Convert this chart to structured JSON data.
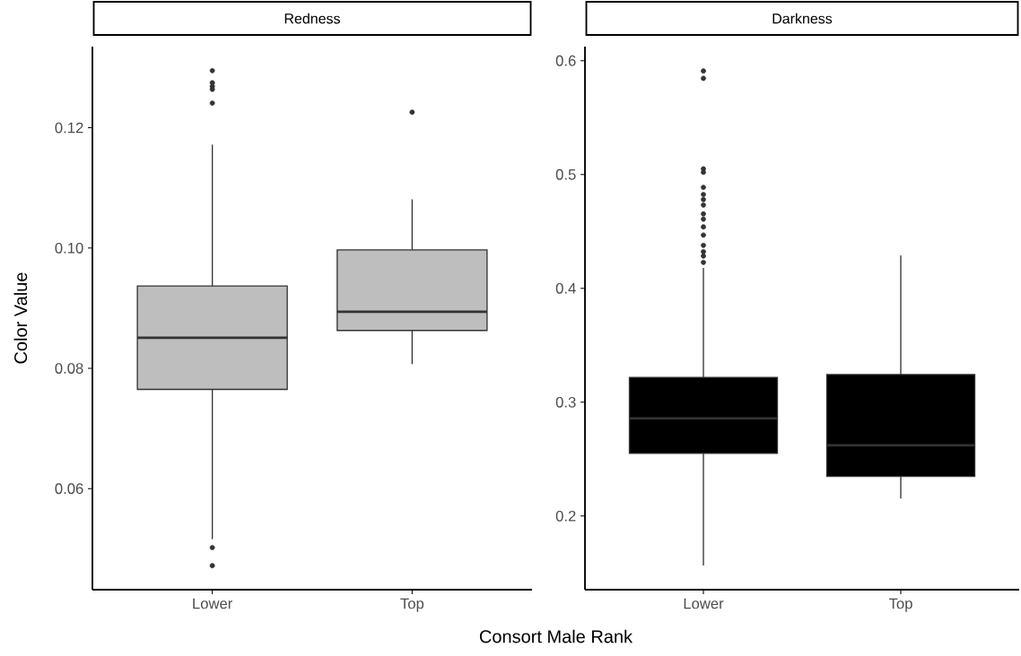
{
  "chart_data": [
    {
      "type": "box",
      "title": "Redness",
      "ylabel": "Color Value",
      "xlabel": "Consort Male Rank",
      "categories": [
        "Lower",
        "Top"
      ],
      "color": "#bebebe",
      "marker": "circle",
      "boxes": [
        {
          "low": 0.0516,
          "q1": 0.0765,
          "median": 0.0851,
          "q3": 0.0937,
          "high": 0.1172,
          "outliers": [
            0.1295,
            0.1275,
            0.1269,
            0.1264,
            0.1241,
            0.0502,
            0.0472
          ]
        },
        {
          "low": 0.0807,
          "q1": 0.0863,
          "median": 0.0894,
          "q3": 0.0997,
          "high": 0.1081,
          "outliers": [
            0.1226
          ]
        }
      ],
      "ylim": [
        0.0432,
        0.1335
      ],
      "yticks": [
        0.06,
        0.08,
        {
          "value": 0.1,
          "label": "0.10"
        },
        0.12
      ]
    },
    {
      "type": "box",
      "title": "Darkness",
      "categories": [
        "Lower",
        "Top"
      ],
      "color": "#000000",
      "marker": "circle",
      "boxes": [
        {
          "low": 0.1565,
          "q1": 0.255,
          "median": 0.2858,
          "q3": 0.3218,
          "high": 0.418,
          "outliers": [
            0.591,
            0.5845,
            0.505,
            0.502,
            0.4887,
            0.4825,
            0.478,
            0.4732,
            0.4654,
            0.4608,
            0.454,
            0.4468,
            0.4378,
            0.4322,
            0.4284,
            0.4228
          ]
        },
        {
          "low": 0.2155,
          "q1": 0.2348,
          "median": 0.2622,
          "q3": 0.3243,
          "high": 0.429
        }
      ],
      "ylim": [
        0.1353,
        0.6124
      ],
      "yticks": [
        0.2,
        0.3,
        0.4,
        0.5,
        0.6
      ]
    }
  ]
}
